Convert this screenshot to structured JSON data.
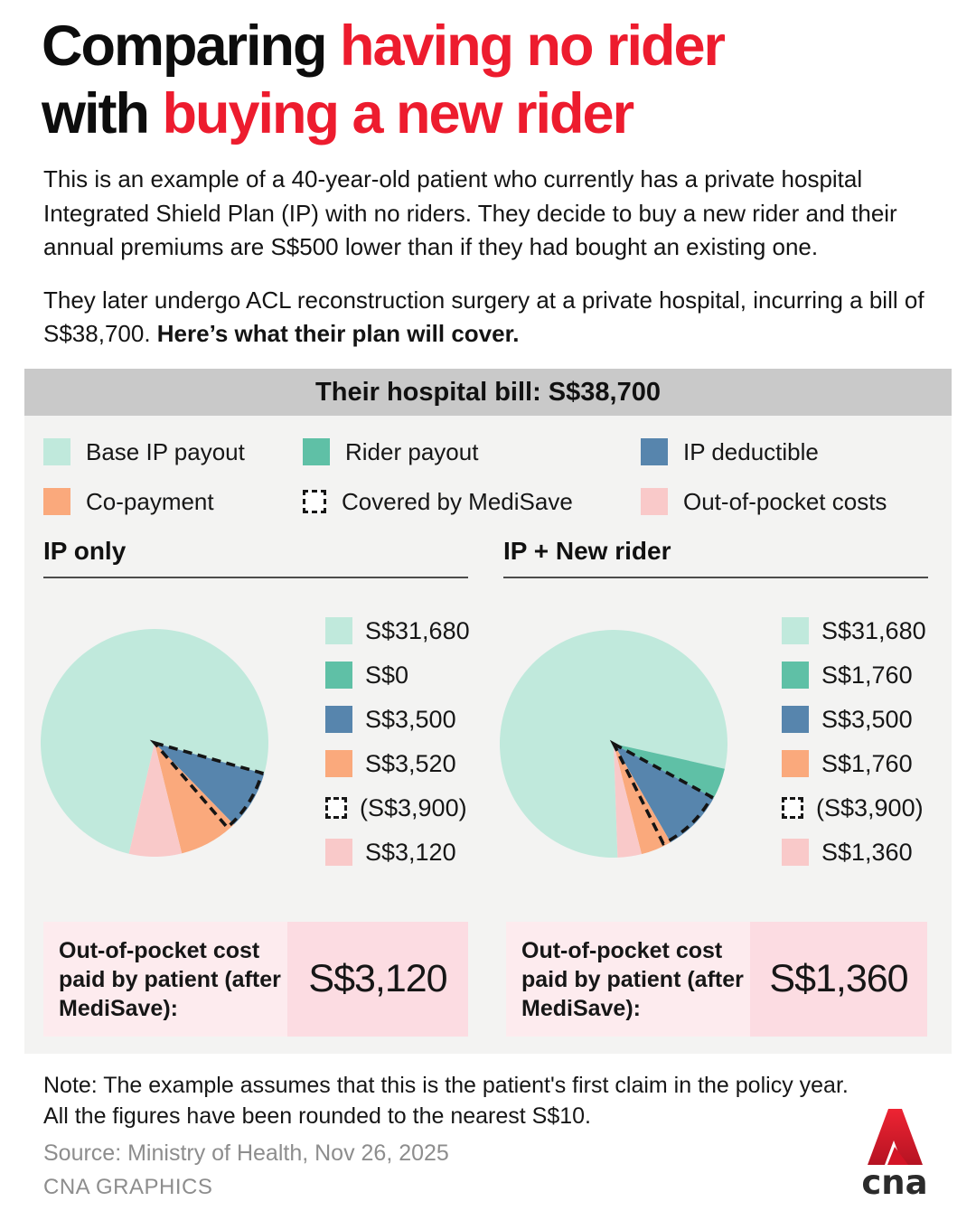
{
  "title": {
    "line1_black": "Comparing ",
    "line1_red": "having no rider",
    "line2_black": "with ",
    "line2_red": "buying a new rider"
  },
  "intro": {
    "p1": "This is an example of a 40-year-old patient who currently has a private hospital Integrated Shield Plan (IP) with no riders. They decide to buy a new rider and their annual premiums are S$500 lower than if they had bought an existing one.",
    "p2_regular": "They later undergo ACL reconstruction surgery at a private hospital, incurring a bill of S$38,700. ",
    "p2_bold": "Here’s what their plan will cover."
  },
  "panel": {
    "banner": "Their hospital bill: S$38,700",
    "legend": [
      {
        "label": "Base IP payout",
        "color": "#c0e9dc",
        "icon": "base-ip-payout-swatch"
      },
      {
        "label": "Rider payout",
        "color": "#5fc0a6",
        "icon": "rider-payout-swatch"
      },
      {
        "label": "IP deductible",
        "color": "#5785ad",
        "icon": "ip-deductible-swatch"
      },
      {
        "label": "Co-payment",
        "color": "#faa97c",
        "icon": "co-payment-swatch"
      },
      {
        "label": "Covered by MediSave",
        "dashed": true,
        "icon": "medisave-dashed-swatch"
      },
      {
        "label": "Out-of-pocket costs",
        "color": "#f9c9c9",
        "icon": "out-of-pocket-swatch"
      }
    ]
  },
  "chart_data": [
    {
      "type": "pie",
      "title": "IP only",
      "start_angle_deg": 193,
      "slices": [
        {
          "label": "Base IP payout",
          "value": 31680,
          "display": "S$31,680",
          "color": "#c0e9dc"
        },
        {
          "label": "Rider payout",
          "value": 0,
          "display": "S$0",
          "color": "#5fc0a6"
        },
        {
          "label": "IP deductible",
          "value": 3500,
          "display": "S$3,500",
          "color": "#5785ad"
        },
        {
          "label": "Co-payment",
          "value": 3520,
          "display": "S$3,520",
          "color": "#faa97c"
        },
        {
          "label": "Out-of-pocket costs",
          "value": 3120,
          "display": "S$3,120",
          "color": "#f9c9c9"
        }
      ],
      "medisave_overlay": {
        "label": "Covered by MediSave",
        "value": 3900,
        "display": "(S$3,900)",
        "start_slice_index": 2
      },
      "oop_label": "Out-of-pocket cost paid by patient (after MediSave):",
      "oop_value": "S$3,120"
    },
    {
      "type": "pie",
      "title": "IP + New rider",
      "start_angle_deg": 178,
      "slices": [
        {
          "label": "Base IP payout",
          "value": 31680,
          "display": "S$31,680",
          "color": "#c0e9dc"
        },
        {
          "label": "Rider payout",
          "value": 1760,
          "display": "S$1,760",
          "color": "#5fc0a6"
        },
        {
          "label": "IP deductible",
          "value": 3500,
          "display": "S$3,500",
          "color": "#5785ad"
        },
        {
          "label": "Co-payment",
          "value": 1760,
          "display": "S$1,760",
          "color": "#faa97c"
        },
        {
          "label": "Out-of-pocket costs",
          "value": 1360,
          "display": "S$1,360",
          "color": "#f9c9c9"
        }
      ],
      "medisave_overlay": {
        "label": "Covered by MediSave",
        "value": 3900,
        "display": "(S$3,900)",
        "start_slice_index": 2
      },
      "oop_label": "Out-of-pocket cost paid by patient (after MediSave):",
      "oop_value": "S$1,360"
    }
  ],
  "note": {
    "line1": "Note: The example assumes that this is the patient's first claim in the policy year.",
    "line2": "All the figures have been rounded to the nearest S$10."
  },
  "footer": {
    "source": "Source: Ministry of Health, Nov 26, 2025",
    "credit": "CNA GRAPHICS",
    "logo_text": "cna"
  },
  "colors": {
    "accent_red": "#ed1c2e",
    "banner_gray": "#c9c9c9",
    "panel_gray": "#f3f3f2",
    "oop_label_bg": "#fdebee",
    "oop_value_bg": "#fcdce2"
  }
}
